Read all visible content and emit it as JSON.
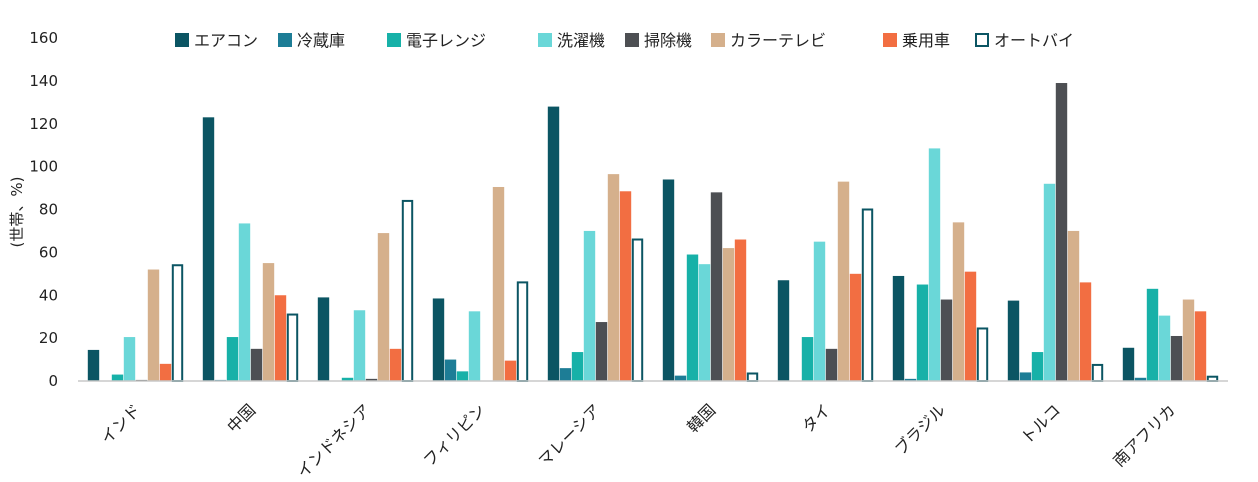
{
  "chart_data": {
    "type": "bar",
    "ylabel": "(世帯、%)",
    "ylim": [
      0,
      160
    ],
    "yticks": [
      0,
      20,
      40,
      60,
      80,
      100,
      120,
      140,
      160
    ],
    "grid": false,
    "legend_position": "top",
    "categories": [
      "インド",
      "中国",
      "インドネシア",
      "フィリピン",
      "マレーシア",
      "韓国",
      "タイ",
      "ブラジル",
      "トルコ",
      "南アフリカ"
    ],
    "series": [
      {
        "name": "エアコン",
        "color": "#0b5563",
        "outline": false,
        "values": [
          14.5,
          123,
          39,
          38.5,
          128,
          94,
          47,
          49,
          37.5,
          15.5
        ]
      },
      {
        "name": "冷蔵庫",
        "color": "#1d7d96",
        "outline": false,
        "values": [
          0,
          0.5,
          0,
          10,
          6,
          2.5,
          0,
          1,
          4,
          1.5
        ]
      },
      {
        "name": "電子レンジ",
        "color": "#17b1a8",
        "outline": false,
        "values": [
          3,
          20.5,
          1.5,
          4.5,
          13.5,
          59,
          20.5,
          45,
          13.5,
          43
        ]
      },
      {
        "name": "洗濯機",
        "color": "#6ad7d8",
        "outline": false,
        "values": [
          20.5,
          73.5,
          33,
          32.5,
          70,
          54.5,
          65,
          108.5,
          92,
          30.5
        ]
      },
      {
        "name": "掃除機",
        "color": "#4d4f53",
        "outline": false,
        "values": [
          0.5,
          15,
          1,
          0,
          27.5,
          88,
          15,
          38,
          139,
          21
        ]
      },
      {
        "name": "カラーテレビ",
        "color": "#d5b08c",
        "outline": false,
        "values": [
          52,
          55,
          69,
          90.5,
          96.5,
          62,
          93,
          74,
          70,
          38
        ]
      },
      {
        "name": "乗用車",
        "color": "#f26e42",
        "outline": false,
        "values": [
          8,
          40,
          15,
          9.5,
          88.5,
          66,
          50,
          51,
          46,
          32.5
        ]
      },
      {
        "name": "オートバイ",
        "color": "#0b5563",
        "outline": true,
        "values": [
          54,
          31,
          84,
          46,
          66,
          3.5,
          80,
          24.5,
          7.5,
          2
        ]
      }
    ]
  }
}
